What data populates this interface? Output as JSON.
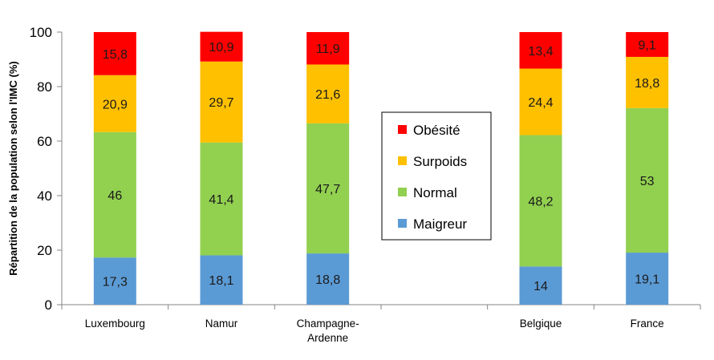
{
  "chart_data": {
    "type": "bar",
    "stacked": true,
    "title": "",
    "xlabel": "",
    "ylabel": "Répartition de la population selon l'IMC (%)",
    "ylim": [
      0,
      100
    ],
    "yticks": [
      0,
      20,
      40,
      60,
      80,
      100
    ],
    "grid": false,
    "legend_position": "center-right",
    "categories": [
      [
        "Luxembourg"
      ],
      [
        "Namur"
      ],
      [
        "Champagne-",
        "Ardenne"
      ],
      [],
      [
        "Belgique"
      ],
      [
        "France"
      ]
    ],
    "series": [
      {
        "name": "Maigreur",
        "color": "#5b9bd5",
        "values": [
          17.3,
          18.1,
          18.8,
          null,
          14,
          19.1
        ],
        "labels": [
          "17,3",
          "18,1",
          "18,8",
          "",
          "14",
          "19,1"
        ]
      },
      {
        "name": "Normal",
        "color": "#92d050",
        "values": [
          46,
          41.4,
          47.7,
          null,
          48.2,
          53
        ],
        "labels": [
          "46",
          "41,4",
          "47,7",
          "",
          "48,2",
          "53"
        ]
      },
      {
        "name": "Surpoids",
        "color": "#ffc000",
        "values": [
          20.9,
          29.7,
          21.6,
          null,
          24.4,
          18.8
        ],
        "labels": [
          "20,9",
          "29,7",
          "21,6",
          "",
          "24,4",
          "18,8"
        ]
      },
      {
        "name": "Obésité",
        "color": "#ff0000",
        "values": [
          15.8,
          10.9,
          11.9,
          null,
          13.4,
          9.1
        ],
        "labels": [
          "15,8",
          "10,9",
          "11,9",
          "",
          "13,4",
          "9,1"
        ]
      }
    ],
    "legend_order": [
      "Obésité",
      "Surpoids",
      "Normal",
      "Maigreur"
    ]
  }
}
